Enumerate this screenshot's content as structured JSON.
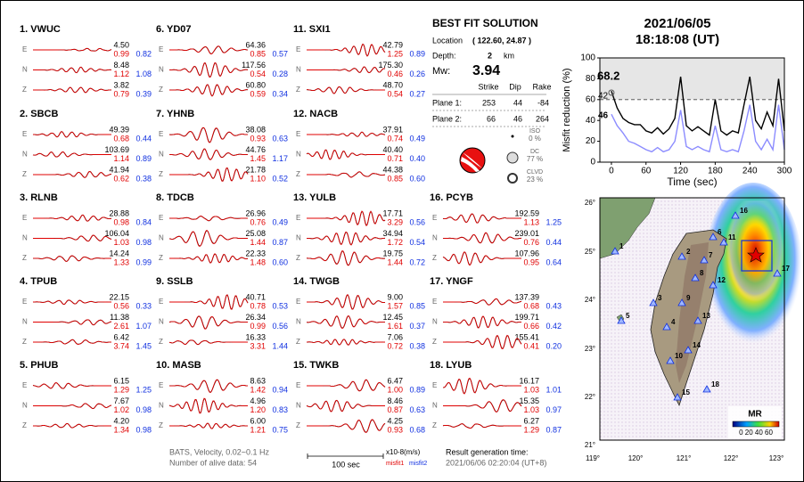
{
  "header": {
    "date": "2021/06/05",
    "time": "18:18:08  (UT)"
  },
  "stations": [
    {
      "label": "1.  VWUC",
      "traces": [
        {
          "comp": "E",
          "amp": "4.50",
          "misfit1": "0.99",
          "misfit2": "0.82"
        },
        {
          "comp": "N",
          "amp": "8.48",
          "misfit1": "1.12",
          "misfit2": "1.08"
        },
        {
          "comp": "Z",
          "amp": "3.82",
          "misfit1": "0.79",
          "misfit2": "0.39"
        }
      ]
    },
    {
      "label": "2.  SBCB",
      "traces": [
        {
          "comp": "E",
          "amp": "49.39",
          "misfit1": "0.68",
          "misfit2": "0.44"
        },
        {
          "comp": "N",
          "amp": "103.69",
          "misfit1": "1.14",
          "misfit2": "0.89"
        },
        {
          "comp": "Z",
          "amp": "41.94",
          "misfit1": "0.62",
          "misfit2": "0.38"
        }
      ]
    },
    {
      "label": "3.  RLNB",
      "traces": [
        {
          "comp": "E",
          "amp": "28.88",
          "misfit1": "0.98",
          "misfit2": "0.84"
        },
        {
          "comp": "N",
          "amp": "106.04",
          "misfit1": "1.03",
          "misfit2": "0.98"
        },
        {
          "comp": "Z",
          "amp": "14.24",
          "misfit1": "1.33",
          "misfit2": "0.99"
        }
      ]
    },
    {
      "label": "4.  TPUB",
      "traces": [
        {
          "comp": "E",
          "amp": "22.15",
          "misfit1": "0.56",
          "misfit2": "0.33"
        },
        {
          "comp": "N",
          "amp": "11.38",
          "misfit1": "2.61",
          "misfit2": "1.07"
        },
        {
          "comp": "Z",
          "amp": "6.42",
          "misfit1": "3.74",
          "misfit2": "1.45"
        }
      ]
    },
    {
      "label": "5.  PHUB",
      "traces": [
        {
          "comp": "E",
          "amp": "6.15",
          "misfit1": "1.29",
          "misfit2": "1.25"
        },
        {
          "comp": "N",
          "amp": "7.67",
          "misfit1": "1.02",
          "misfit2": "0.98"
        },
        {
          "comp": "Z",
          "amp": "4.20",
          "misfit1": "1.34",
          "misfit2": "0.98"
        }
      ]
    },
    {
      "label": "6.  YD07",
      "traces": [
        {
          "comp": "E",
          "amp": "64.36",
          "misfit1": "0.85",
          "misfit2": "0.57"
        },
        {
          "comp": "N",
          "amp": "117.56",
          "misfit1": "0.54",
          "misfit2": "0.28"
        },
        {
          "comp": "Z",
          "amp": "60.80",
          "misfit1": "0.59",
          "misfit2": "0.34"
        }
      ]
    },
    {
      "label": "7.  YHNB",
      "traces": [
        {
          "comp": "E",
          "amp": "38.08",
          "misfit1": "0.93",
          "misfit2": "0.63"
        },
        {
          "comp": "N",
          "amp": "44.76",
          "misfit1": "1.45",
          "misfit2": "1.17"
        },
        {
          "comp": "Z",
          "amp": "21.78",
          "misfit1": "1.10",
          "misfit2": "0.52"
        }
      ]
    },
    {
      "label": "8.  TDCB",
      "traces": [
        {
          "comp": "E",
          "amp": "26.96",
          "misfit1": "0.76",
          "misfit2": "0.49"
        },
        {
          "comp": "N",
          "amp": "25.08",
          "misfit1": "1.44",
          "misfit2": "0.87"
        },
        {
          "comp": "Z",
          "amp": "22.33",
          "misfit1": "1.48",
          "misfit2": "0.60"
        }
      ]
    },
    {
      "label": "9.  SSLB",
      "traces": [
        {
          "comp": "E",
          "amp": "40.71",
          "misfit1": "0.78",
          "misfit2": "0.53"
        },
        {
          "comp": "N",
          "amp": "26.34",
          "misfit1": "0.99",
          "misfit2": "0.56"
        },
        {
          "comp": "Z",
          "amp": "16.33",
          "misfit1": "3.31",
          "misfit2": "1.44"
        }
      ]
    },
    {
      "label": "10.  MASB",
      "traces": [
        {
          "comp": "E",
          "amp": "8.63",
          "misfit1": "1.42",
          "misfit2": "0.94"
        },
        {
          "comp": "N",
          "amp": "4.96",
          "misfit1": "1.20",
          "misfit2": "0.83"
        },
        {
          "comp": "Z",
          "amp": "6.00",
          "misfit1": "1.21",
          "misfit2": "0.75"
        }
      ]
    },
    {
      "label": "11.  SXI1",
      "traces": [
        {
          "comp": "E",
          "amp": "42.79",
          "misfit1": "1.25",
          "misfit2": "0.89"
        },
        {
          "comp": "N",
          "amp": "175.30",
          "misfit1": "0.46",
          "misfit2": "0.26"
        },
        {
          "comp": "Z",
          "amp": "48.70",
          "misfit1": "0.54",
          "misfit2": "0.27"
        }
      ]
    },
    {
      "label": "12.  NACB",
      "traces": [
        {
          "comp": "E",
          "amp": "37.91",
          "misfit1": "0.74",
          "misfit2": "0.49"
        },
        {
          "comp": "N",
          "amp": "40.40",
          "misfit1": "0.71",
          "misfit2": "0.40"
        },
        {
          "comp": "Z",
          "amp": "44.38",
          "misfit1": "0.85",
          "misfit2": "0.60"
        }
      ]
    },
    {
      "label": "13.  YULB",
      "traces": [
        {
          "comp": "E",
          "amp": "17.71",
          "misfit1": "3.29",
          "misfit2": "0.56"
        },
        {
          "comp": "N",
          "amp": "34.94",
          "misfit1": "1.72",
          "misfit2": "0.54"
        },
        {
          "comp": "Z",
          "amp": "19.75",
          "misfit1": "1.44",
          "misfit2": "0.72"
        }
      ]
    },
    {
      "label": "14.  TWGB",
      "traces": [
        {
          "comp": "E",
          "amp": "9.00",
          "misfit1": "1.57",
          "misfit2": "0.85"
        },
        {
          "comp": "N",
          "amp": "12.45",
          "misfit1": "1.61",
          "misfit2": "0.37"
        },
        {
          "comp": "Z",
          "amp": "7.06",
          "misfit1": "0.72",
          "misfit2": "0.38"
        }
      ]
    },
    {
      "label": "15.  TWKB",
      "traces": [
        {
          "comp": "E",
          "amp": "6.47",
          "misfit1": "1.00",
          "misfit2": "0.89"
        },
        {
          "comp": "N",
          "amp": "8.46",
          "misfit1": "0.87",
          "misfit2": "0.63"
        },
        {
          "comp": "Z",
          "amp": "4.25",
          "misfit1": "0.93",
          "misfit2": "0.68"
        }
      ]
    },
    {
      "label": "16.  PCYB",
      "traces": [
        {
          "comp": "E",
          "amp": "192.59",
          "misfit1": "1.13",
          "misfit2": "1.25"
        },
        {
          "comp": "N",
          "amp": "239.01",
          "misfit1": "0.76",
          "misfit2": "0.44"
        },
        {
          "comp": "Z",
          "amp": "107.96",
          "misfit1": "0.95",
          "misfit2": "0.64"
        }
      ]
    },
    {
      "label": "17.  YNGF",
      "traces": [
        {
          "comp": "E",
          "amp": "137.39",
          "misfit1": "0.68",
          "misfit2": "0.43"
        },
        {
          "comp": "N",
          "amp": "199.71",
          "misfit1": "0.66",
          "misfit2": "0.42"
        },
        {
          "comp": "Z",
          "amp": "155.41",
          "misfit1": "0.41",
          "misfit2": "0.20"
        }
      ]
    },
    {
      "label": "18.  LYUB",
      "traces": [
        {
          "comp": "E",
          "amp": "16.17",
          "misfit1": "1.03",
          "misfit2": "1.01"
        },
        {
          "comp": "N",
          "amp": "15.35",
          "misfit1": "1.03",
          "misfit2": "0.97"
        },
        {
          "comp": "Z",
          "amp": "6.27",
          "misfit1": "1.29",
          "misfit2": "0.87"
        }
      ]
    }
  ],
  "solution": {
    "title": "BEST FIT SOLUTION",
    "location_label": "Location",
    "location": "( 122.60, 24.87 )",
    "depth_label": "Depth:",
    "depth": "2",
    "depth_unit": "km",
    "mw_label": "Mw:",
    "mw": "3.94",
    "headers": [
      "Strike",
      "Dip",
      "Rake"
    ],
    "planes": [
      {
        "label": "Plane 1:",
        "values": [
          "253",
          "44",
          "-84"
        ]
      },
      {
        "label": "Plane 2:",
        "values": [
          "66",
          "46",
          "264"
        ]
      }
    ],
    "components": [
      {
        "name": "ISO",
        "percent": "0 %"
      },
      {
        "name": "DC",
        "percent": "77 %"
      },
      {
        "name": "CLVD",
        "percent": "23 %"
      }
    ]
  },
  "chart_data": {
    "type": "line",
    "x_label": "Time (sec)",
    "y_label": "Misfit reduction (%)",
    "x": [
      0,
      10,
      20,
      30,
      40,
      50,
      60,
      70,
      80,
      90,
      100,
      110,
      120,
      130,
      140,
      150,
      160,
      170,
      180,
      190,
      200,
      210,
      220,
      230,
      240,
      250,
      260,
      270,
      280,
      290,
      300
    ],
    "series": [
      {
        "name": "misfit reduction 1",
        "color": "#000000",
        "values": [
          68.2,
          52,
          42,
          38,
          36,
          36,
          30,
          28,
          33,
          27,
          32,
          42,
          82,
          35,
          30,
          34,
          30,
          26,
          60,
          30,
          26,
          30,
          28,
          55,
          82,
          40,
          32,
          48,
          35,
          80,
          30
        ]
      },
      {
        "name": "misfit reduction 2",
        "color": "#8c8cff",
        "values": [
          46,
          35,
          28,
          20,
          18,
          15,
          12,
          10,
          14,
          10,
          12,
          20,
          50,
          15,
          12,
          15,
          12,
          10,
          35,
          12,
          10,
          12,
          10,
          30,
          55,
          20,
          12,
          22,
          12,
          55,
          12
        ]
      }
    ],
    "annotations": [
      {
        "text": "68.2",
        "color": "#ff0000"
      },
      {
        "text": "42",
        "color": "#808080"
      },
      {
        "text": "46",
        "color": "#8c8cff"
      }
    ],
    "ref_lines": [
      60
    ],
    "xlim": [
      -20,
      300
    ],
    "ylim": [
      0,
      100
    ],
    "xticks": [
      0,
      60,
      120,
      180,
      240,
      300
    ],
    "yticks": [
      0,
      20,
      40,
      60,
      80,
      100
    ]
  },
  "map": {
    "lon_labels": [
      "119°",
      "120°",
      "121°",
      "122°",
      "123°"
    ],
    "lat_labels": [
      "26°",
      "25°",
      "24°",
      "23°",
      "22°",
      "21°"
    ],
    "stations": [
      "1",
      "2",
      "3",
      "4",
      "5",
      "6",
      "7",
      "8",
      "9",
      "10",
      "11",
      "12",
      "13",
      "14",
      "15",
      "16",
      "17",
      "18"
    ],
    "colorbar_title": "MR",
    "colorbar_labels": "0 20 40 60"
  },
  "footer": {
    "filter": "BATS, Velocity, 0.02~0.1 Hz",
    "alive": "Number of alive data: 54",
    "scale": "100 sec",
    "unit": "x10-8(m/s)",
    "misfit1": "misfit1",
    "misfit2": "misfit2",
    "gen_label": "Result generation time:",
    "gen_time": "2021/06/06 02:20:04 (UT+8)"
  }
}
